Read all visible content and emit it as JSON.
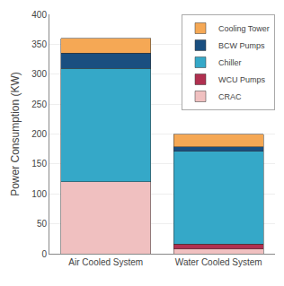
{
  "chart_data": {
    "type": "bar",
    "stacked": true,
    "categories": [
      "Air Cooled System",
      "Water Cooled System"
    ],
    "series": [
      {
        "name": "CRAC",
        "color": "#f0c0c0",
        "values": [
          120,
          8
        ]
      },
      {
        "name": "WCU Pumps",
        "color": "#b03050",
        "values": [
          0,
          8
        ]
      },
      {
        "name": "Chiller",
        "color": "#35a8c8",
        "values": [
          190,
          155
        ]
      },
      {
        "name": "BCW Pumps",
        "color": "#1a4f80",
        "values": [
          25,
          8
        ]
      },
      {
        "name": "Cooling Tower",
        "color": "#f5a855",
        "values": [
          25,
          21
        ]
      }
    ],
    "ylabel": "Power Consumption (KW)",
    "ylim": [
      0,
      400
    ],
    "yticks": [
      0,
      50,
      100,
      150,
      200,
      250,
      300,
      350,
      400
    ],
    "grid": true,
    "legend": "upper right"
  }
}
